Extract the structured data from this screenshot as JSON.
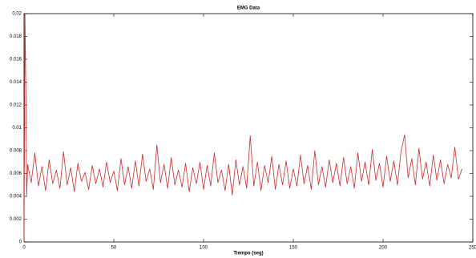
{
  "chart_data": {
    "type": "line",
    "title": "EMG Data",
    "x_label": "Tiempo (seg)",
    "x": [
      0,
      0.5,
      1,
      1.5,
      2,
      4,
      6,
      8,
      10,
      12,
      14,
      16,
      18,
      20,
      22,
      24,
      26,
      28,
      30,
      32,
      34,
      36,
      38,
      40,
      42,
      44,
      46,
      48,
      50,
      52,
      54,
      56,
      58,
      60,
      62,
      64,
      66,
      68,
      70,
      72,
      74,
      76,
      78,
      80,
      82,
      84,
      86,
      88,
      90,
      92,
      94,
      96,
      98,
      100,
      102,
      104,
      106,
      108,
      110,
      112,
      114,
      116,
      118,
      120,
      122,
      124,
      126,
      128,
      130,
      132,
      134,
      136,
      138,
      140,
      142,
      144,
      146,
      148,
      150,
      152,
      154,
      156,
      158,
      160,
      162,
      164,
      166,
      168,
      170,
      172,
      174,
      176,
      178,
      180,
      182,
      184,
      186,
      188,
      190,
      192,
      194,
      196,
      198,
      200,
      202,
      204,
      206,
      208,
      210,
      212,
      214,
      216,
      218,
      220,
      222,
      224,
      226,
      228,
      230,
      232,
      234,
      236,
      238,
      240,
      242,
      244
    ],
    "series": [
      {
        "color": "#cc2a2a",
        "values": [
          0,
          0.02,
          0.0135,
          0.004,
          0.0068,
          0.0052,
          0.0078,
          0.0049,
          0.0066,
          0.0045,
          0.0072,
          0.0051,
          0.0063,
          0.0047,
          0.0079,
          0.005,
          0.0065,
          0.0044,
          0.0069,
          0.0053,
          0.0061,
          0.0046,
          0.0067,
          0.0051,
          0.0064,
          0.0048,
          0.007,
          0.0052,
          0.0062,
          0.0045,
          0.0073,
          0.005,
          0.0066,
          0.0047,
          0.0071,
          0.0049,
          0.0077,
          0.0053,
          0.0064,
          0.0046,
          0.0085,
          0.0052,
          0.0068,
          0.0047,
          0.0074,
          0.005,
          0.0063,
          0.0048,
          0.0069,
          0.0044,
          0.0065,
          0.0051,
          0.007,
          0.0046,
          0.0067,
          0.0049,
          0.0078,
          0.0052,
          0.0063,
          0.0045,
          0.0068,
          0.0041,
          0.0072,
          0.005,
          0.0066,
          0.0047,
          0.0093,
          0.0049,
          0.007,
          0.0045,
          0.0067,
          0.0052,
          0.0075,
          0.0046,
          0.0068,
          0.005,
          0.0071,
          0.0047,
          0.0064,
          0.0049,
          0.0076,
          0.0051,
          0.0067,
          0.0046,
          0.008,
          0.005,
          0.0066,
          0.0048,
          0.0072,
          0.0052,
          0.0069,
          0.0049,
          0.0074,
          0.0051,
          0.0066,
          0.0047,
          0.0078,
          0.0053,
          0.007,
          0.005,
          0.0081,
          0.0054,
          0.0069,
          0.0048,
          0.0075,
          0.0053,
          0.0071,
          0.005,
          0.0079,
          0.0094,
          0.0056,
          0.0073,
          0.005,
          0.0082,
          0.0055,
          0.007,
          0.0049,
          0.0076,
          0.0054,
          0.0072,
          0.0051,
          0.0068,
          0.0056,
          0.0083,
          0.0055,
          0.0064
        ]
      }
    ],
    "xlim": [
      0,
      250
    ],
    "xticks": [
      0,
      50,
      100,
      150,
      200,
      250
    ],
    "ylim": [
      0,
      0.02
    ],
    "yticks": [
      0,
      0.002,
      0.004,
      0.006,
      0.008,
      0.01,
      0.012,
      0.014,
      0.016,
      0.018,
      0.02
    ]
  }
}
